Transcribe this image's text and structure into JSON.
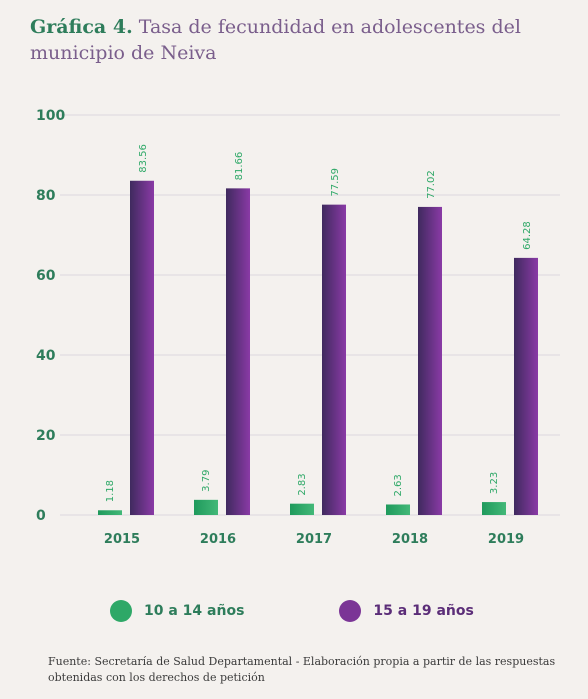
{
  "title": {
    "lead": "Gráfica 4.",
    "text": "Tasa de fecundidad en adolescentes del municipio de Neiva"
  },
  "source": "Fuente: Secretaría de Salud Departamental - Elaboración propia a partir de las respuestas obtenidas con los derechos de petición",
  "colors": {
    "series_10_14": "#2ea867",
    "series_15_19": "#5b2d78",
    "axis_text": "#2e7d5b"
  },
  "chart_data": {
    "type": "bar",
    "categories": [
      "2015",
      "2016",
      "2017",
      "2018",
      "2019"
    ],
    "series": [
      {
        "name": "10 a 14 años",
        "values": [
          1.18,
          3.79,
          2.83,
          2.63,
          3.23
        ],
        "labels": [
          "1.18",
          "3.79",
          "2.83",
          "2.63",
          "3.23"
        ]
      },
      {
        "name": "15 a 19 años",
        "values": [
          83.56,
          81.66,
          77.59,
          77.02,
          64.28
        ],
        "labels": [
          "83.56",
          "81.66",
          "77.59",
          "77.02",
          "64.28"
        ]
      }
    ],
    "ylim": [
      0,
      100
    ],
    "yticks": [
      "0",
      "20",
      "40",
      "60",
      "80",
      "100"
    ],
    "grid": true,
    "legend": "bottom"
  }
}
